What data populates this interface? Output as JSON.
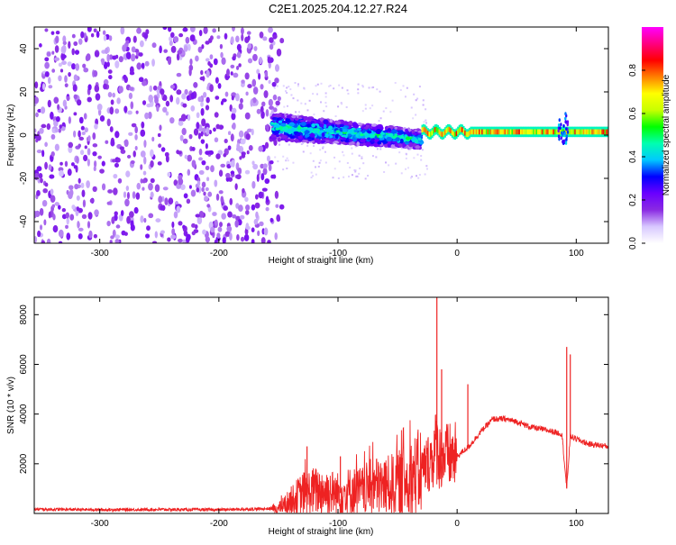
{
  "title": "C2E1.2025.204.12.27.R24",
  "chart_data": [
    {
      "type": "heatmap",
      "xlabel": "Height of straight line (km)",
      "ylabel": "Frequency (Hz)",
      "xlim": [
        -355,
        127
      ],
      "ylim": [
        -50,
        50
      ],
      "xticks": [
        -300,
        -200,
        -100,
        0,
        100
      ],
      "yticks": [
        -40,
        -20,
        0,
        20,
        40
      ],
      "colorbar": {
        "label": "Normalized spectral amplitude",
        "range": [
          0,
          1
        ],
        "ticks": [
          "0.0",
          "0.2",
          "0.4",
          "0.6",
          "0.8"
        ],
        "colormap": [
          "#ffffff",
          "#d8c8ff",
          "#8a2be2",
          "#6a00ff",
          "#0000ff",
          "#00c8ff",
          "#00ffb0",
          "#00ff00",
          "#c8ff00",
          "#ffff00",
          "#ff8000",
          "#ff0000",
          "#ff0080",
          "#ff00ff"
        ]
      },
      "regions": [
        {
          "x_range": [
            -355,
            -155
          ],
          "freq_range": [
            -50,
            50
          ],
          "level": 0.15,
          "pattern": "noise"
        },
        {
          "x_range": [
            -155,
            -100
          ],
          "freq_center": 3,
          "freq_width": 12,
          "level": 0.35
        },
        {
          "x_range": [
            -100,
            -30
          ],
          "freq_center_start": 4,
          "freq_center_end": -4,
          "freq_width": 12,
          "level": 0.4
        },
        {
          "x_range": [
            -30,
            127
          ],
          "freq_center": 1.5,
          "freq_width": 3,
          "level": 0.8
        },
        {
          "x_range": [
            85,
            95
          ],
          "freq_range": [
            -5,
            10
          ],
          "level": 0.3
        }
      ]
    },
    {
      "type": "line",
      "xlabel": "Height of straight line (km)",
      "ylabel": "SNR (10 * v/v)",
      "xlim": [
        -355,
        127
      ],
      "ylim": [
        0,
        8700
      ],
      "xticks": [
        -300,
        -200,
        -100,
        0,
        100
      ],
      "yticks": [
        2000,
        4000,
        6000,
        8000
      ],
      "series": [
        {
          "color": "#ee2222",
          "x": [
            -355,
            -300,
            -250,
            -200,
            -170,
            -150,
            -140,
            -130,
            -120,
            -110,
            -100,
            -90,
            -80,
            -70,
            -60,
            -50,
            -40,
            -30,
            -25,
            -20,
            -17,
            -15,
            -10,
            -5,
            0,
            10,
            20,
            30,
            40,
            50,
            60,
            70,
            80,
            88,
            92,
            95,
            100,
            110,
            127
          ],
          "y": [
            170,
            150,
            160,
            150,
            180,
            200,
            500,
            800,
            900,
            900,
            800,
            900,
            900,
            1100,
            1100,
            1200,
            1400,
            1700,
            2000,
            2300,
            2800,
            2300,
            2300,
            2300,
            2300,
            2700,
            3300,
            3800,
            3800,
            3700,
            3500,
            3400,
            3300,
            3200,
            1000,
            3100,
            3000,
            2800,
            2700
          ]
        }
      ],
      "spikes": [
        {
          "x": -17,
          "y": 8700
        },
        {
          "x": -13,
          "y": 5800
        },
        {
          "x": 9,
          "y": 5200
        },
        {
          "x": 92,
          "y": 6700
        },
        {
          "x": 95,
          "y": 6400
        },
        {
          "x": -126,
          "y": 2700
        },
        {
          "x": -98,
          "y": 2300
        }
      ]
    }
  ]
}
